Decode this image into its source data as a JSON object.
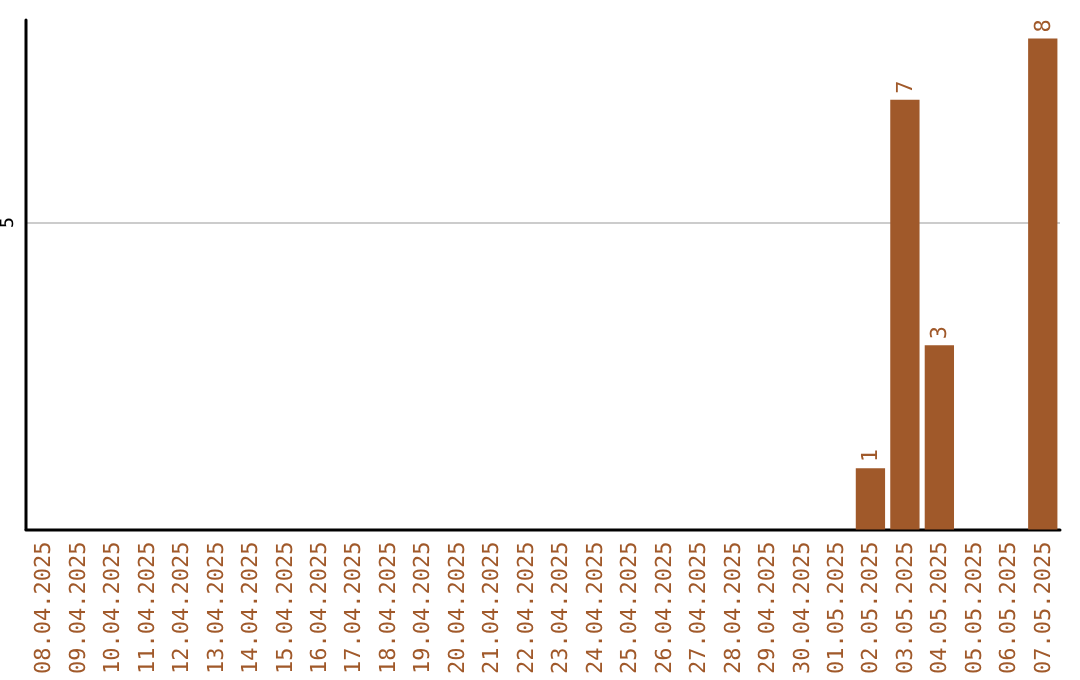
{
  "chart_data": {
    "type": "bar",
    "categories": [
      "08.04.2025",
      "09.04.2025",
      "10.04.2025",
      "11.04.2025",
      "12.04.2025",
      "13.04.2025",
      "14.04.2025",
      "15.04.2025",
      "16.04.2025",
      "17.04.2025",
      "18.04.2025",
      "19.04.2025",
      "20.04.2025",
      "21.04.2025",
      "22.04.2025",
      "23.04.2025",
      "24.04.2025",
      "25.04.2025",
      "26.04.2025",
      "27.04.2025",
      "28.04.2025",
      "29.04.2025",
      "30.04.2025",
      "01.05.2025",
      "02.05.2025",
      "03.05.2025",
      "04.05.2025",
      "05.05.2025",
      "06.05.2025",
      "07.05.2025"
    ],
    "values": [
      null,
      null,
      null,
      null,
      null,
      null,
      null,
      null,
      null,
      null,
      null,
      null,
      null,
      null,
      null,
      null,
      null,
      null,
      null,
      null,
      null,
      null,
      null,
      null,
      1,
      7,
      3,
      null,
      null,
      8
    ],
    "color": "#a0592a",
    "ylim": [
      0,
      8.3
    ],
    "yticks": [
      5
    ],
    "grid": "y",
    "data_labels": true
  }
}
